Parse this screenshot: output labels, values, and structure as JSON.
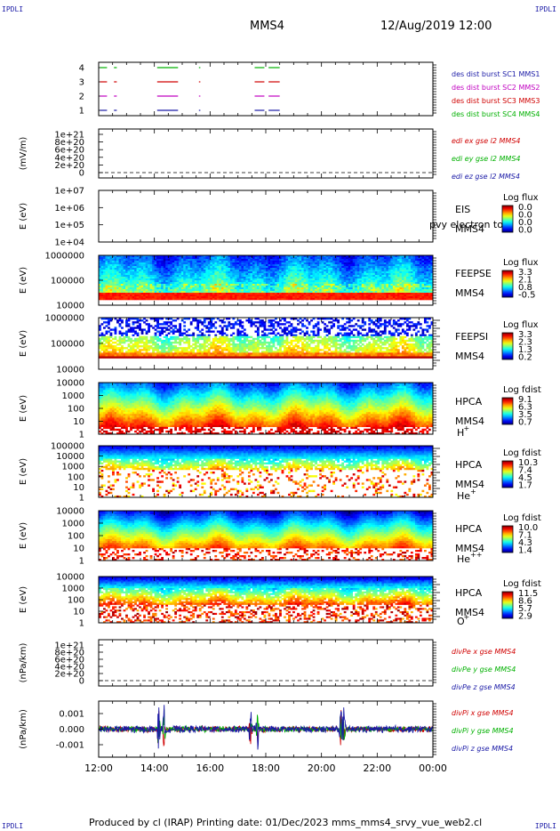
{
  "header": {
    "spacecraft": "MMS4",
    "datetime": "12/Aug/2019 12:00",
    "corner_left_top": "IPDLI",
    "corner_right_top": "IPDLI",
    "corner_left_bottom": "IPDLI",
    "corner_right_bottom": "IPDLI"
  },
  "footer": {
    "text": "Produced by cl (IRAP)   Printing date: 01/Dec/2023   mms_mms4_srvy_vue_web2.cl"
  },
  "time_axis": [
    "12:00",
    "14:00",
    "16:00",
    "18:00",
    "20:00",
    "22:00",
    "00:00"
  ],
  "chart_data": [
    {
      "type": "timeline",
      "id": "burst",
      "ylabel": "",
      "ticks": [
        "4",
        "3",
        "2",
        "1"
      ],
      "series": [
        {
          "name": "des dist burst SC1 MMS1",
          "color": "#1a1aa6",
          "level": 1,
          "segments": [
            [
              12.05,
              12.3
            ],
            [
              12.55,
              12.65
            ],
            [
              14.1,
              14.85
            ],
            [
              15.6,
              15.65
            ],
            [
              17.6,
              17.95
            ],
            [
              18.1,
              18.5
            ]
          ]
        },
        {
          "name": "des dist burst SC2 MMS2",
          "color": "#c000c0",
          "level": 2,
          "segments": [
            [
              12.05,
              12.3
            ],
            [
              12.55,
              12.65
            ],
            [
              14.1,
              14.85
            ],
            [
              15.6,
              15.65
            ],
            [
              17.6,
              17.95
            ],
            [
              18.1,
              18.5
            ]
          ]
        },
        {
          "name": "des dist burst SC3 MMS3",
          "color": "#d00000",
          "level": 3,
          "segments": [
            [
              12.05,
              12.3
            ],
            [
              12.55,
              12.65
            ],
            [
              14.1,
              14.85
            ],
            [
              15.6,
              15.65
            ],
            [
              17.6,
              17.95
            ],
            [
              18.1,
              18.5
            ]
          ]
        },
        {
          "name": "des dist burst SC4 MMS4",
          "color": "#00b000",
          "level": 4,
          "segments": [
            [
              12.05,
              12.3
            ],
            [
              12.55,
              12.65
            ],
            [
              14.1,
              14.85
            ],
            [
              15.6,
              15.65
            ],
            [
              17.6,
              17.95
            ],
            [
              18.1,
              18.5
            ]
          ]
        }
      ]
    },
    {
      "type": "line",
      "id": "edi",
      "ylabel": "(mV/m)",
      "ticks": [
        "1e+21",
        "8e+20",
        "6e+20",
        "4e+20",
        "2e+20",
        "0"
      ],
      "tick_values": [
        1e+21,
        8e+20,
        6e+20,
        4e+20,
        2e+20,
        0
      ],
      "ylim": [
        0,
        1.1e+21
      ],
      "zero_line": true,
      "series": [
        {
          "name": "edi ex gse l2 MMS4",
          "color": "#d00000"
        },
        {
          "name": "edi ey gse l2 MMS4",
          "color": "#00b000"
        },
        {
          "name": "edi ez gse l2 MMS4",
          "color": "#1a1aa6"
        }
      ]
    },
    {
      "type": "heatmap",
      "id": "eis",
      "ylabel": "E (eV)",
      "ticks": [
        "1e+07",
        "1e+06",
        "1e+05",
        "1e+04"
      ],
      "label_lines": [
        "EIS",
        "MMS4"
      ],
      "overlay_text": "pvy electron to",
      "colorbar": {
        "title": "Log flux",
        "values": [
          "0.0",
          "0.0",
          "0.0",
          "0.0"
        ]
      },
      "empty": true
    },
    {
      "type": "heatmap",
      "id": "feepse",
      "ylabel": "E (eV)",
      "ticks": [
        "1000000",
        "100000",
        "10000"
      ],
      "label_lines": [
        "FEEPSE",
        "MMS4"
      ],
      "colorbar": {
        "title": "Log flux",
        "values": [
          "3.3",
          "2.1",
          "0.8",
          "-0.5"
        ]
      },
      "style": "feeps_e"
    },
    {
      "type": "heatmap",
      "id": "feepsi",
      "ylabel": "E (eV)",
      "ticks": [
        "1000000",
        "100000",
        "10000"
      ],
      "label_lines": [
        "FEEPSI",
        "MMS4"
      ],
      "colorbar": {
        "title": "Log flux",
        "values": [
          "3.3",
          "2.3",
          "1.3",
          "0.2"
        ]
      },
      "style": "feeps_i"
    },
    {
      "type": "heatmap",
      "id": "hpca_h",
      "ylabel": "E (eV)",
      "ticks": [
        "10000",
        "1000",
        "100",
        "10",
        "1"
      ],
      "label_lines": [
        "HPCA",
        "MMS4"
      ],
      "species": "H",
      "species_sup": "+",
      "colorbar": {
        "title": "Log fdist",
        "values": [
          "9.1",
          "6.3",
          "3.5",
          "0.7"
        ]
      },
      "style": "hpca_h"
    },
    {
      "type": "heatmap",
      "id": "hpca_he",
      "ylabel": "E (eV)",
      "ticks": [
        "100000",
        "10000",
        "1000",
        "100",
        "10",
        "1"
      ],
      "label_lines": [
        "HPCA",
        "MMS4"
      ],
      "species": "He",
      "species_sup": "+",
      "colorbar": {
        "title": "Log fdist",
        "values": [
          "10.3",
          "7.4",
          "4.5",
          "1.7"
        ]
      },
      "style": "hpca_he"
    },
    {
      "type": "heatmap",
      "id": "hpca_hepp",
      "ylabel": "E (eV)",
      "ticks": [
        "10000",
        "1000",
        "100",
        "10",
        "1"
      ],
      "label_lines": [
        "HPCA",
        "MMS4"
      ],
      "species": "He",
      "species_sup": "++",
      "colorbar": {
        "title": "Log fdist",
        "values": [
          "10.0",
          "7.1",
          "4.3",
          "1.4"
        ]
      },
      "style": "hpca_hepp"
    },
    {
      "type": "heatmap",
      "id": "hpca_o",
      "ylabel": "E (eV)",
      "ticks": [
        "10000",
        "1000",
        "100",
        "10",
        "1"
      ],
      "label_lines": [
        "HPCA",
        "MMS4"
      ],
      "species": "O",
      "species_sup": "+",
      "colorbar": {
        "title": "Log fdist",
        "values": [
          "11.5",
          "8.6",
          "5.7",
          "2.9"
        ]
      },
      "style": "hpca_o"
    },
    {
      "type": "line",
      "id": "divpe",
      "ylabel": "(nPa/km)",
      "ticks": [
        "1e+21",
        "8e+20",
        "6e+20",
        "4e+20",
        "2e+20",
        "0"
      ],
      "tick_values": [
        1e+21,
        8e+20,
        6e+20,
        4e+20,
        2e+20,
        0
      ],
      "ylim": [
        0,
        1.1e+21
      ],
      "zero_line": true,
      "series": [
        {
          "name": "divPe x gse MMS4",
          "color": "#d00000"
        },
        {
          "name": "divPe y gse MMS4",
          "color": "#00b000"
        },
        {
          "name": "divPe z gse MMS4",
          "color": "#1a1aa6"
        }
      ]
    },
    {
      "type": "line",
      "id": "divpi",
      "ylabel": "(nPa/km)",
      "ticks": [
        "0.001",
        "0.000",
        "-0.001"
      ],
      "tick_values": [
        0.001,
        0,
        -0.001
      ],
      "ylim": [
        -0.0018,
        0.0018
      ],
      "noise": true,
      "spikes_hours": [
        14.15,
        14.35,
        17.45,
        17.7,
        20.7,
        20.8
      ],
      "series": [
        {
          "name": "divPi x gse MMS4",
          "color": "#d00000"
        },
        {
          "name": "divPi y gse MMS4",
          "color": "#00b000"
        },
        {
          "name": "divPi z gse MMS4",
          "color": "#1a1aa6"
        }
      ]
    }
  ]
}
